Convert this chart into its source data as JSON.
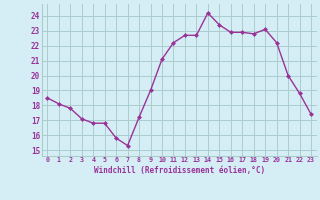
{
  "x": [
    0,
    1,
    2,
    3,
    4,
    5,
    6,
    7,
    8,
    9,
    10,
    11,
    12,
    13,
    14,
    15,
    16,
    17,
    18,
    19,
    20,
    21,
    22,
    23
  ],
  "y": [
    18.5,
    18.1,
    17.8,
    17.1,
    16.8,
    16.8,
    15.8,
    15.3,
    17.2,
    19.0,
    21.1,
    22.2,
    22.7,
    22.7,
    24.2,
    23.4,
    22.9,
    22.9,
    22.8,
    23.1,
    22.2,
    20.0,
    18.8,
    17.4
  ],
  "line_color": "#993399",
  "marker": "D",
  "marker_size": 2.0,
  "bg_color": "#d5eef5",
  "grid_color": "#aacccc",
  "xlabel": "Windchill (Refroidissement éolien,°C)",
  "ylabel_ticks": [
    15,
    16,
    17,
    18,
    19,
    20,
    21,
    22,
    23,
    24
  ],
  "xtick_labels": [
    "0",
    "1",
    "2",
    "3",
    "4",
    "5",
    "6",
    "7",
    "8",
    "9",
    "10",
    "11",
    "12",
    "13",
    "14",
    "15",
    "16",
    "17",
    "18",
    "19",
    "20",
    "21",
    "22",
    "23"
  ],
  "ylim": [
    14.6,
    24.8
  ],
  "xlim": [
    -0.5,
    23.5
  ],
  "tick_color": "#993399",
  "label_color": "#993399",
  "font_family": "monospace",
  "linewidth": 1.0
}
